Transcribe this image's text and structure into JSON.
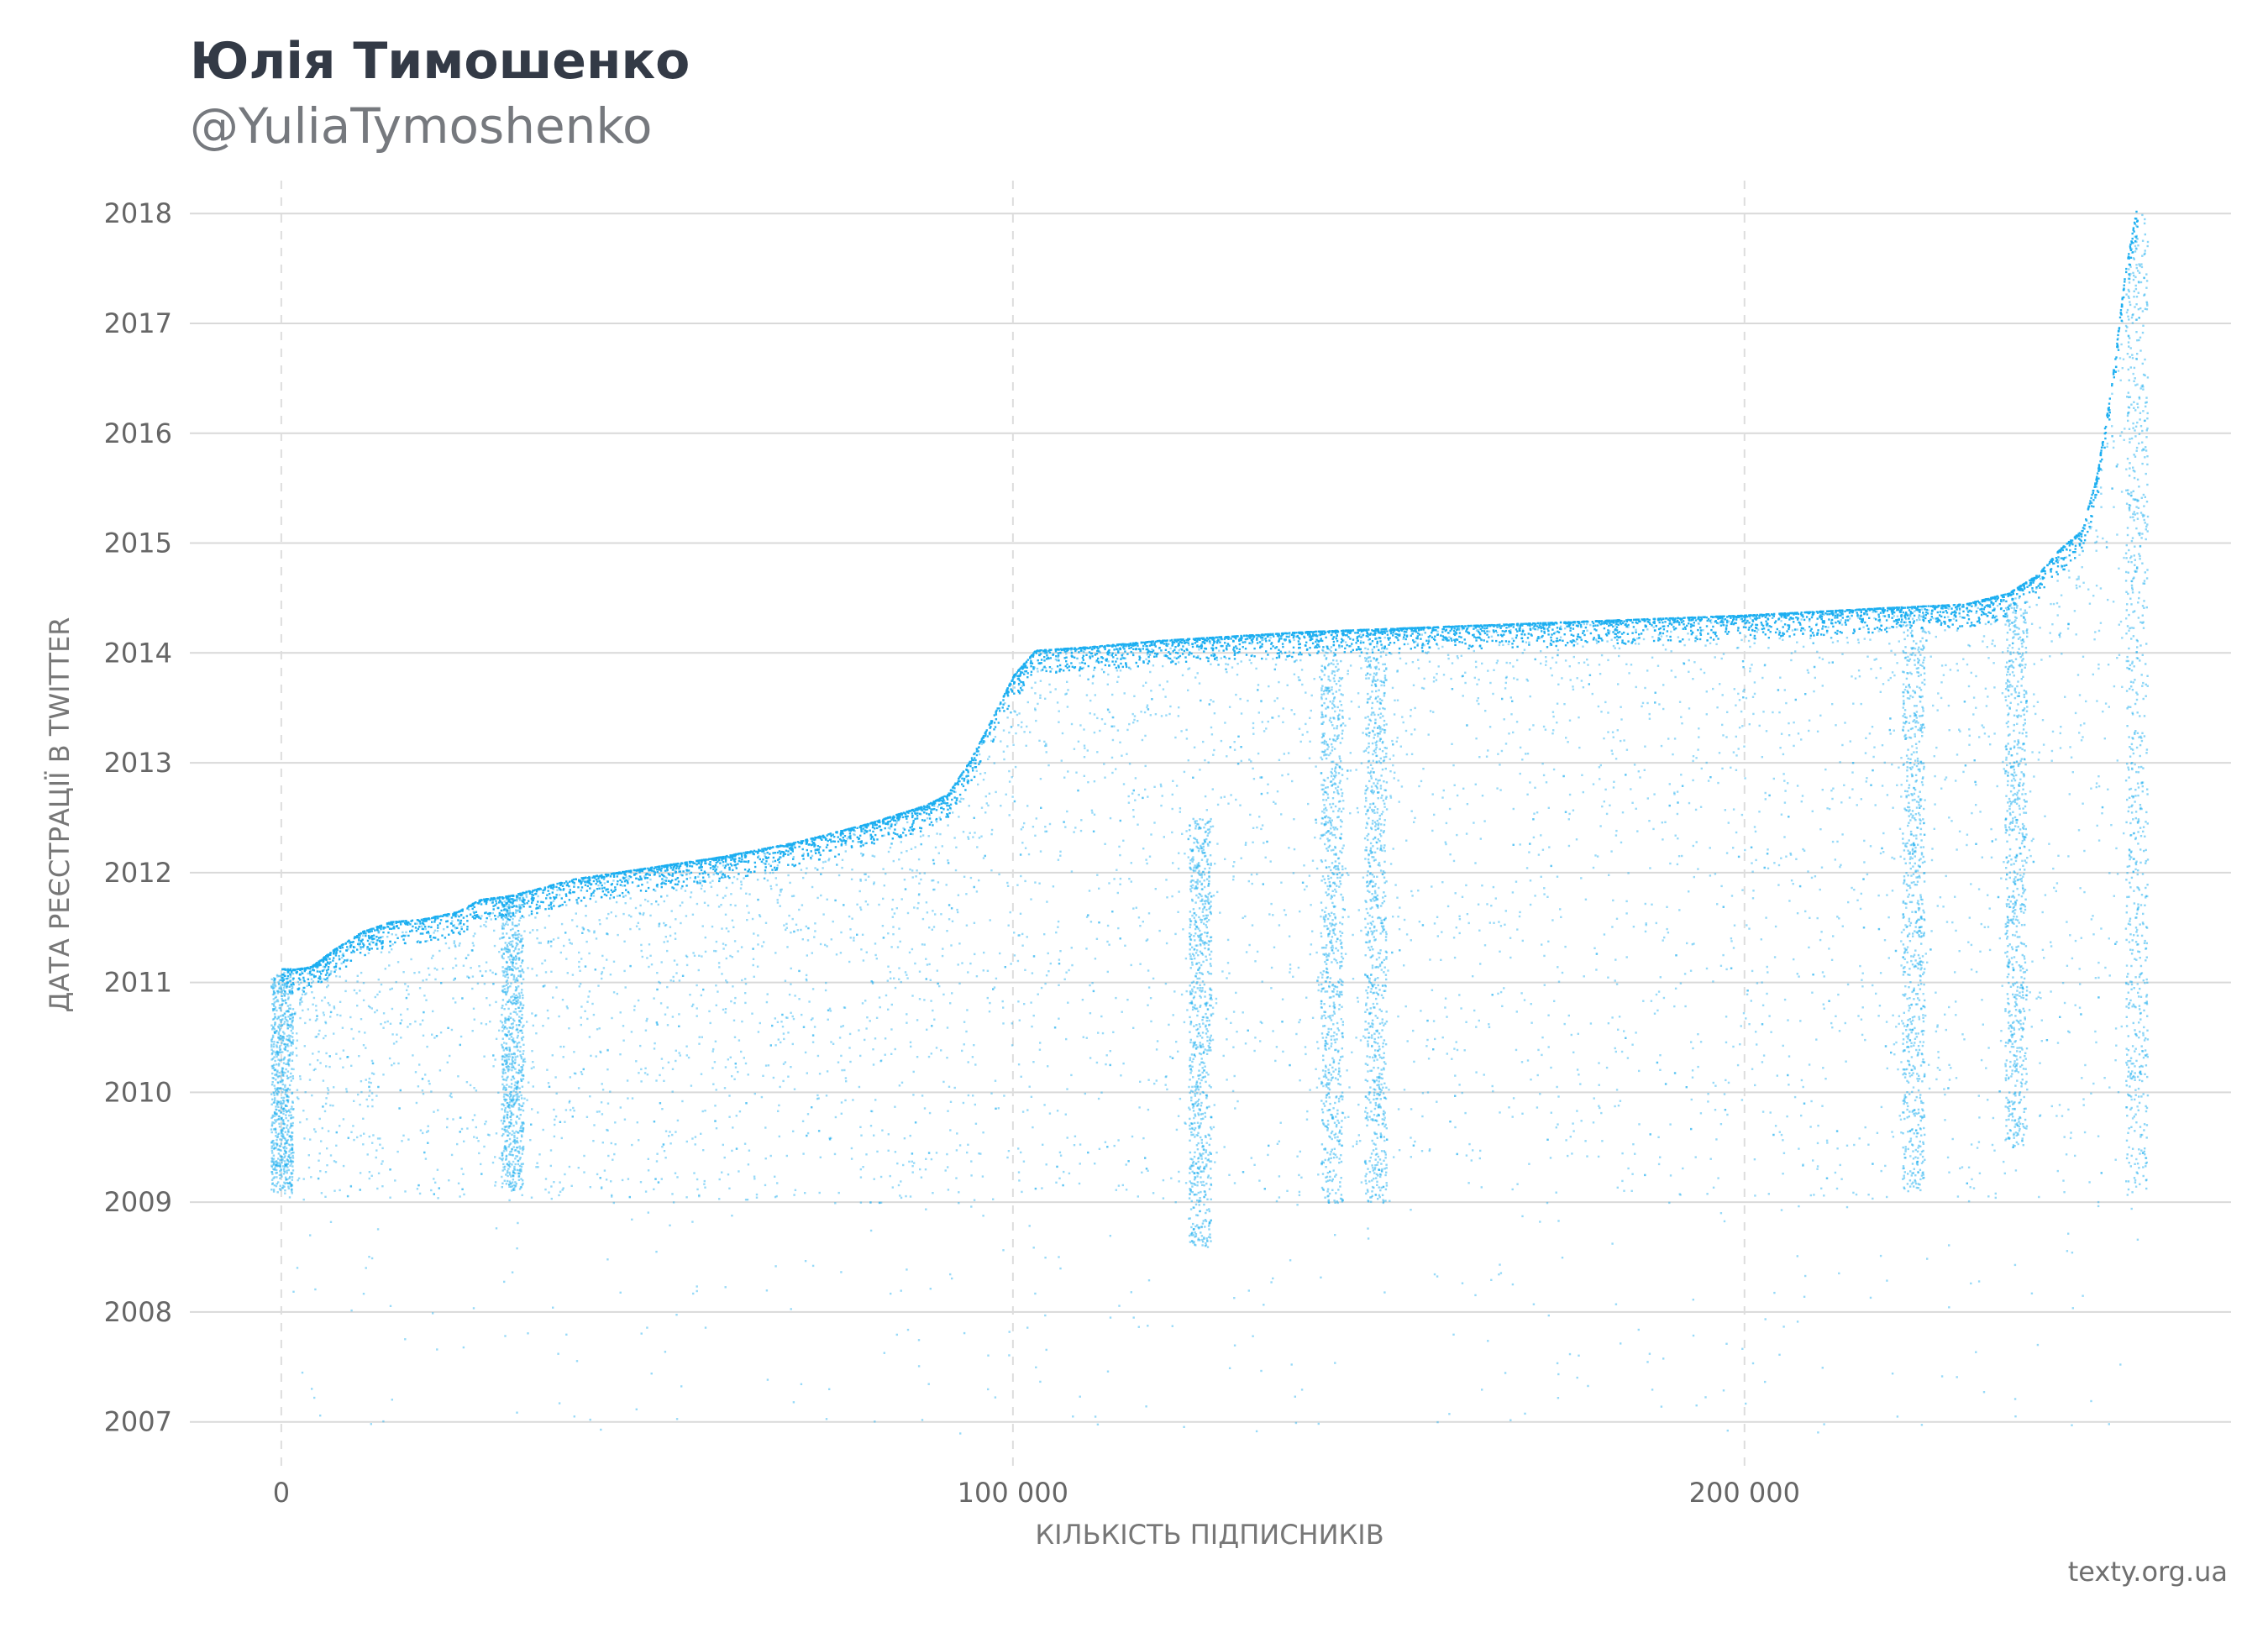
{
  "header": {
    "title": "Юлія Тимошенко",
    "subtitle": "@YuliaTymoshenko"
  },
  "footer": {
    "source": "texty.org.ua"
  },
  "chart_data": {
    "type": "scatter",
    "title": "Юлія Тимошенко",
    "subtitle": "@YuliaTymoshenko",
    "xlabel": "КІЛЬКІСТЬ ПІДПИСНИКІВ",
    "ylabel": "ДАТА РЕЄСТРАЦІЇ В TWITTER",
    "xlim": [
      -12500,
      266500
    ],
    "ylim": [
      2006.6,
      2018.3
    ],
    "x_ticks": [
      {
        "value": 0,
        "label": "0"
      },
      {
        "value": 100000,
        "label": "100 000"
      },
      {
        "value": 200000,
        "label": "200 000"
      }
    ],
    "y_ticks": [
      {
        "value": 2007,
        "label": "2007"
      },
      {
        "value": 2008,
        "label": "2008"
      },
      {
        "value": 2009,
        "label": "2009"
      },
      {
        "value": 2010,
        "label": "2010"
      },
      {
        "value": 2011,
        "label": "2011"
      },
      {
        "value": 2012,
        "label": "2012"
      },
      {
        "value": 2013,
        "label": "2013"
      },
      {
        "value": 2014,
        "label": "2014"
      },
      {
        "value": 2015,
        "label": "2015"
      },
      {
        "value": 2016,
        "label": "2016"
      },
      {
        "value": 2017,
        "label": "2017"
      },
      {
        "value": 2018,
        "label": "2018"
      }
    ],
    "grid": {
      "horizontal": true,
      "vertical_dashed": true
    },
    "legend": "none",
    "point_color": "#1aaef0",
    "series": [
      {
        "frontier": [
          {
            "x": 0,
            "y": 2011.13
          },
          {
            "x": 2000,
            "y": 2011.13
          },
          {
            "x": 4000,
            "y": 2011.15
          },
          {
            "x": 7000,
            "y": 2011.3
          },
          {
            "x": 11000,
            "y": 2011.47
          },
          {
            "x": 15000,
            "y": 2011.56
          },
          {
            "x": 19000,
            "y": 2011.58
          },
          {
            "x": 24000,
            "y": 2011.65
          },
          {
            "x": 27000,
            "y": 2011.76
          },
          {
            "x": 31500,
            "y": 2011.8
          },
          {
            "x": 40000,
            "y": 2011.95
          },
          {
            "x": 50000,
            "y": 2012.05
          },
          {
            "x": 60000,
            "y": 2012.15
          },
          {
            "x": 70000,
            "y": 2012.28
          },
          {
            "x": 80000,
            "y": 2012.45
          },
          {
            "x": 88000,
            "y": 2012.62
          },
          {
            "x": 91000,
            "y": 2012.72
          },
          {
            "x": 94000,
            "y": 2013.02
          },
          {
            "x": 97000,
            "y": 2013.4
          },
          {
            "x": 100000,
            "y": 2013.8
          },
          {
            "x": 103000,
            "y": 2014.03
          },
          {
            "x": 110000,
            "y": 2014.06
          },
          {
            "x": 120000,
            "y": 2014.12
          },
          {
            "x": 140000,
            "y": 2014.2
          },
          {
            "x": 160000,
            "y": 2014.25
          },
          {
            "x": 180000,
            "y": 2014.3
          },
          {
            "x": 200000,
            "y": 2014.35
          },
          {
            "x": 220000,
            "y": 2014.42
          },
          {
            "x": 230000,
            "y": 2014.45
          },
          {
            "x": 236000,
            "y": 2014.55
          },
          {
            "x": 240000,
            "y": 2014.72
          },
          {
            "x": 243000,
            "y": 2014.95
          },
          {
            "x": 246000,
            "y": 2015.12
          },
          {
            "x": 248000,
            "y": 2015.6
          },
          {
            "x": 250000,
            "y": 2016.4
          },
          {
            "x": 252000,
            "y": 2017.5
          },
          {
            "x": 253700,
            "y": 2018.12
          }
        ],
        "dense_bands": [
          {
            "x": 0,
            "y_from": 2009.1,
            "y_to": 2011.1
          },
          {
            "x": 31500,
            "y_from": 2009.1,
            "y_to": 2011.8
          },
          {
            "x": 125500,
            "y_from": 2008.6,
            "y_to": 2012.5
          },
          {
            "x": 143500,
            "y_from": 2009.0,
            "y_to": 2014.1
          },
          {
            "x": 149500,
            "y_from": 2009.0,
            "y_to": 2014.1
          },
          {
            "x": 223000,
            "y_from": 2009.1,
            "y_to": 2014.4
          },
          {
            "x": 237000,
            "y_from": 2009.5,
            "y_to": 2014.5
          },
          {
            "x": 253500,
            "y_from": 2009.1,
            "y_to": 2018.0
          }
        ],
        "x_range": [
          0,
          253700
        ],
        "y_min": 2006.9
      }
    ]
  }
}
